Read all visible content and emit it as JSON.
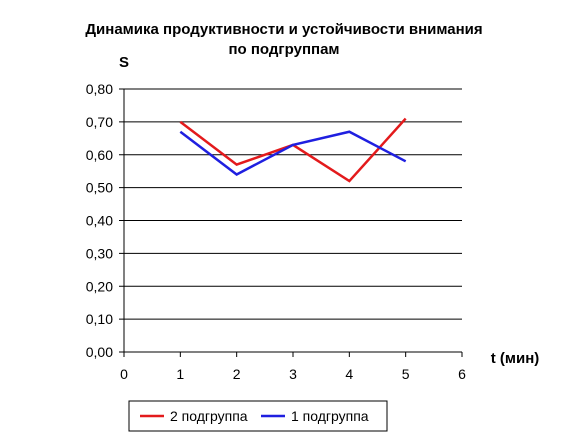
{
  "chart_data": {
    "type": "line",
    "title": "Динамика продуктивности и устойчивости внимания по подгруппам",
    "title_lines": [
      "Динамика продуктивности и устойчивости внимания",
      "по подгруппам"
    ],
    "xlabel": "t (мин)",
    "ylabel": "S",
    "xlim": [
      0,
      6
    ],
    "ylim": [
      0,
      0.8
    ],
    "x_ticks": [
      0,
      1,
      2,
      3,
      4,
      5,
      6
    ],
    "y_ticks": [
      0.0,
      0.1,
      0.2,
      0.3,
      0.4,
      0.5,
      0.6,
      0.7,
      0.8
    ],
    "x_tick_labels": [
      "0",
      "1",
      "2",
      "3",
      "4",
      "5",
      "6"
    ],
    "y_tick_labels": [
      "0,00",
      "0,10",
      "0,20",
      "0,30",
      "0,40",
      "0,50",
      "0,60",
      "0,70",
      "0,80"
    ],
    "grid": "horizontal",
    "legend_position": "bottom",
    "x": [
      1,
      2,
      3,
      4,
      5
    ],
    "series": [
      {
        "name": "2 подгруппа",
        "color": "#e31a1c",
        "values": [
          0.7,
          0.57,
          0.63,
          0.52,
          0.71
        ]
      },
      {
        "name": "1 подгруппа",
        "color": "#1f1fe0",
        "values": [
          0.67,
          0.54,
          0.63,
          0.67,
          0.58
        ]
      }
    ]
  }
}
